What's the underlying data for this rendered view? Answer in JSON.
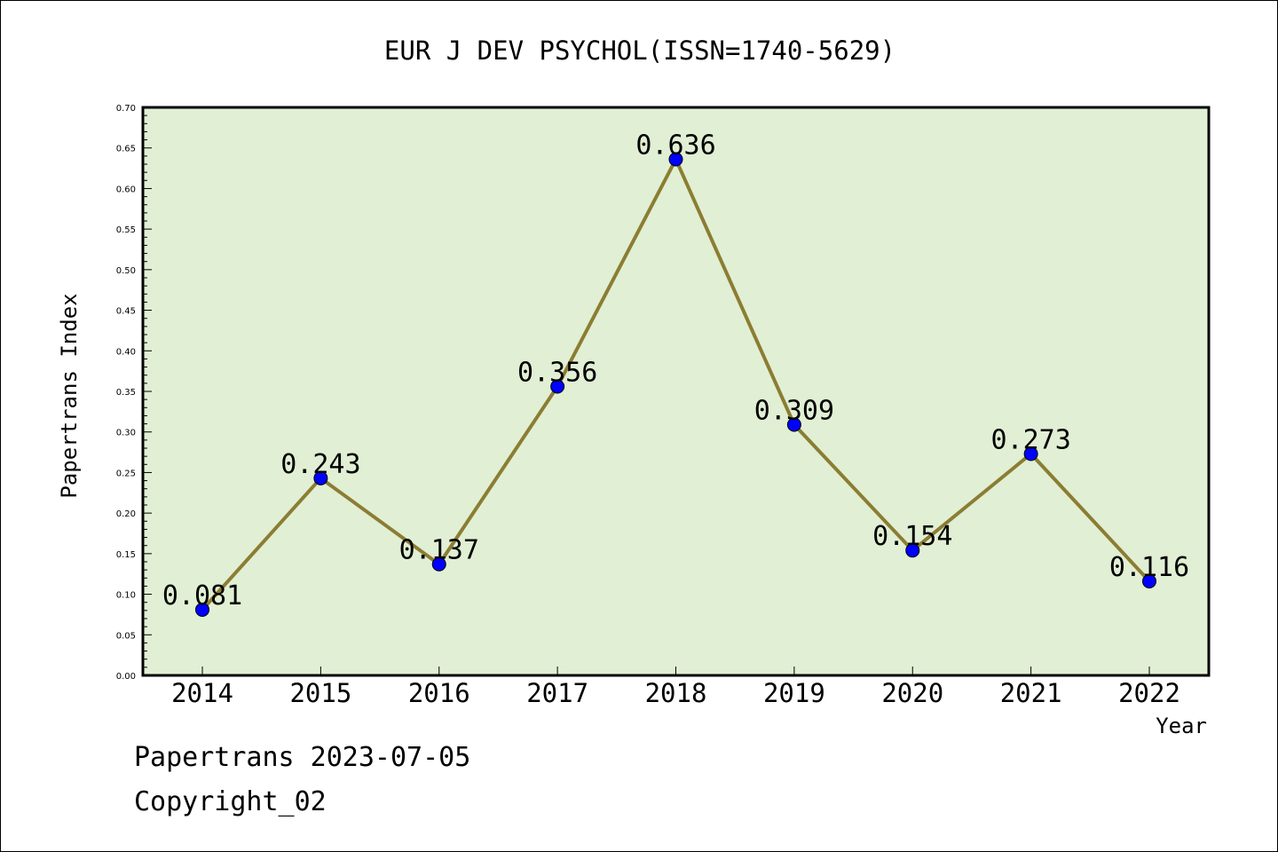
{
  "chart_data": {
    "type": "line",
    "title": "EUR J DEV PSYCHOL(ISSN=1740-5629)",
    "xlabel": "Year",
    "ylabel": "Papertrans Index",
    "categories": [
      "2014",
      "2015",
      "2016",
      "2017",
      "2018",
      "2019",
      "2020",
      "2021",
      "2022"
    ],
    "series": [
      {
        "values": [
          0.081,
          0.243,
          0.137,
          0.356,
          0.636,
          0.309,
          0.154,
          0.273,
          0.116
        ],
        "labels": [
          "0.081",
          "0.243",
          "0.137",
          "0.356",
          "0.636",
          "0.309",
          "0.154",
          "0.273",
          "0.116"
        ]
      }
    ],
    "ylim": [
      0,
      0.7
    ],
    "yticks": [
      "0.00",
      "0.05",
      "0.10",
      "0.15",
      "0.20",
      "0.25",
      "0.30",
      "0.35",
      "0.40",
      "0.45",
      "0.50",
      "0.55",
      "0.60",
      "0.65",
      "0.70"
    ],
    "grid": false,
    "colors": {
      "plot_background": "#e1efd4",
      "line": "#8b7d32",
      "marker": "#0000ff"
    }
  },
  "footer": {
    "line1": "Papertrans 2023-07-05",
    "line2": "Copyright_02"
  }
}
